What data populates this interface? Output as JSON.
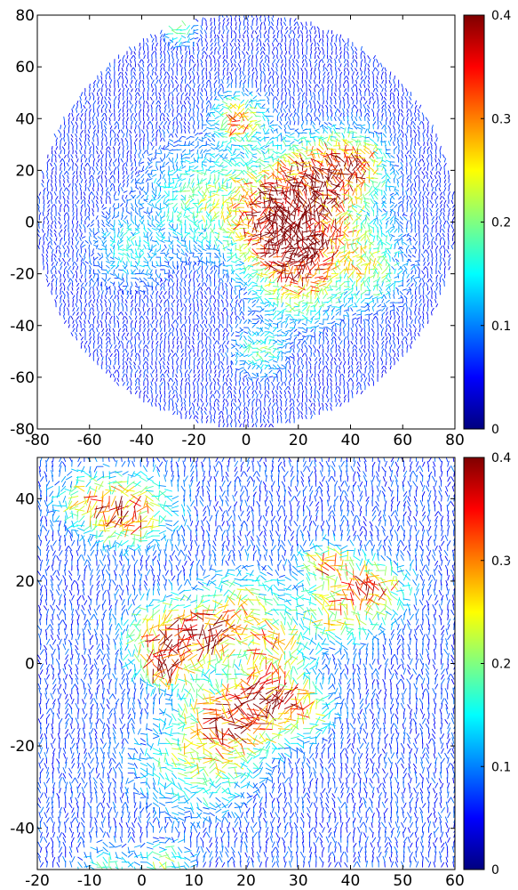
{
  "colors": {
    "colormap": [
      "#00007f",
      "#0000ff",
      "#0080ff",
      "#00ffff",
      "#80ff80",
      "#ffff00",
      "#ff8000",
      "#ff0000",
      "#7f0000"
    ],
    "frame": "#000000",
    "background": "#ffffff"
  },
  "chart_data": [
    {
      "type": "quiver",
      "domain_shape": "circle",
      "xlim": [
        -80,
        80
      ],
      "ylim": [
        -80,
        80
      ],
      "xticks": [
        "-80",
        "-60",
        "-40",
        "-20",
        "0",
        "20",
        "40",
        "60",
        "80"
      ],
      "yticks": [
        "-80",
        "-60",
        "-40",
        "-20",
        "0",
        "20",
        "40",
        "60",
        "80"
      ],
      "colorbar": {
        "min": 0,
        "max": 0.4,
        "ticks": [
          "0",
          "0.1",
          "0.2",
          "0.3",
          "0.4"
        ]
      },
      "grid_step": 1.6,
      "background_magnitude": 0.06,
      "hotspots": [
        {
          "x": 12,
          "y": 5,
          "r": 14,
          "mag": 0.3
        },
        {
          "x": 16,
          "y": -8,
          "r": 10,
          "mag": 0.28
        },
        {
          "x": -2,
          "y": 40,
          "r": 6,
          "mag": 0.26
        },
        {
          "x": 42,
          "y": 22,
          "r": 8,
          "mag": 0.25
        },
        {
          "x": 28,
          "y": 18,
          "r": 9,
          "mag": 0.2
        },
        {
          "x": 20,
          "y": -25,
          "r": 10,
          "mag": 0.16
        },
        {
          "x": 5,
          "y": -50,
          "r": 6,
          "mag": 0.14
        },
        {
          "x": -25,
          "y": 75,
          "r": 4,
          "mag": 0.14
        },
        {
          "x": -20,
          "y": 10,
          "r": 12,
          "mag": 0.12
        },
        {
          "x": 35,
          "y": -5,
          "r": 14,
          "mag": 0.14
        },
        {
          "x": -45,
          "y": -10,
          "r": 9,
          "mag": 0.1
        },
        {
          "x": 48,
          "y": -20,
          "r": 8,
          "mag": 0.12
        }
      ]
    },
    {
      "type": "quiver",
      "domain_shape": "rectangle",
      "xlim": [
        -20,
        60
      ],
      "ylim": [
        -50,
        50
      ],
      "xticks": [
        "-20",
        "-10",
        "0",
        "10",
        "20",
        "30",
        "40",
        "50",
        "60"
      ],
      "yticks": [
        "-40",
        "-20",
        "0",
        "20",
        "40"
      ],
      "colorbar": {
        "min": 0,
        "max": 0.4,
        "ticks": [
          "0",
          "0.1",
          "0.2",
          "0.3",
          "0.4"
        ]
      },
      "grid_step": 1.2,
      "background_magnitude": 0.07,
      "hotspots": [
        {
          "x": -2,
          "y": 37,
          "r": 5,
          "mag": 0.3
        },
        {
          "x": 6,
          "y": 7,
          "r": 5,
          "mag": 0.33
        },
        {
          "x": 17,
          "y": -13,
          "r": 6,
          "mag": 0.35
        },
        {
          "x": 36,
          "y": 24,
          "r": 3,
          "mag": 0.28
        },
        {
          "x": 45,
          "y": 18,
          "r": 4,
          "mag": 0.26
        },
        {
          "x": 14,
          "y": 8,
          "r": 4,
          "mag": 0.25
        },
        {
          "x": 25,
          "y": 5,
          "r": 4,
          "mag": 0.2
        },
        {
          "x": 4,
          "y": 0,
          "r": 3,
          "mag": 0.28
        },
        {
          "x": 25,
          "y": -5,
          "r": 5,
          "mag": 0.18
        },
        {
          "x": 30,
          "y": -12,
          "r": 4,
          "mag": 0.18
        },
        {
          "x": 10,
          "y": -25,
          "r": 7,
          "mag": 0.14
        },
        {
          "x": -10,
          "y": 40,
          "r": 4,
          "mag": 0.15
        },
        {
          "x": 38,
          "y": 12,
          "r": 5,
          "mag": 0.2
        },
        {
          "x": 20,
          "y": 15,
          "r": 5,
          "mag": 0.16
        },
        {
          "x": 4,
          "y": -48,
          "r": 3,
          "mag": 0.15
        },
        {
          "x": -7,
          "y": -49,
          "r": 3,
          "mag": 0.12
        }
      ]
    }
  ]
}
